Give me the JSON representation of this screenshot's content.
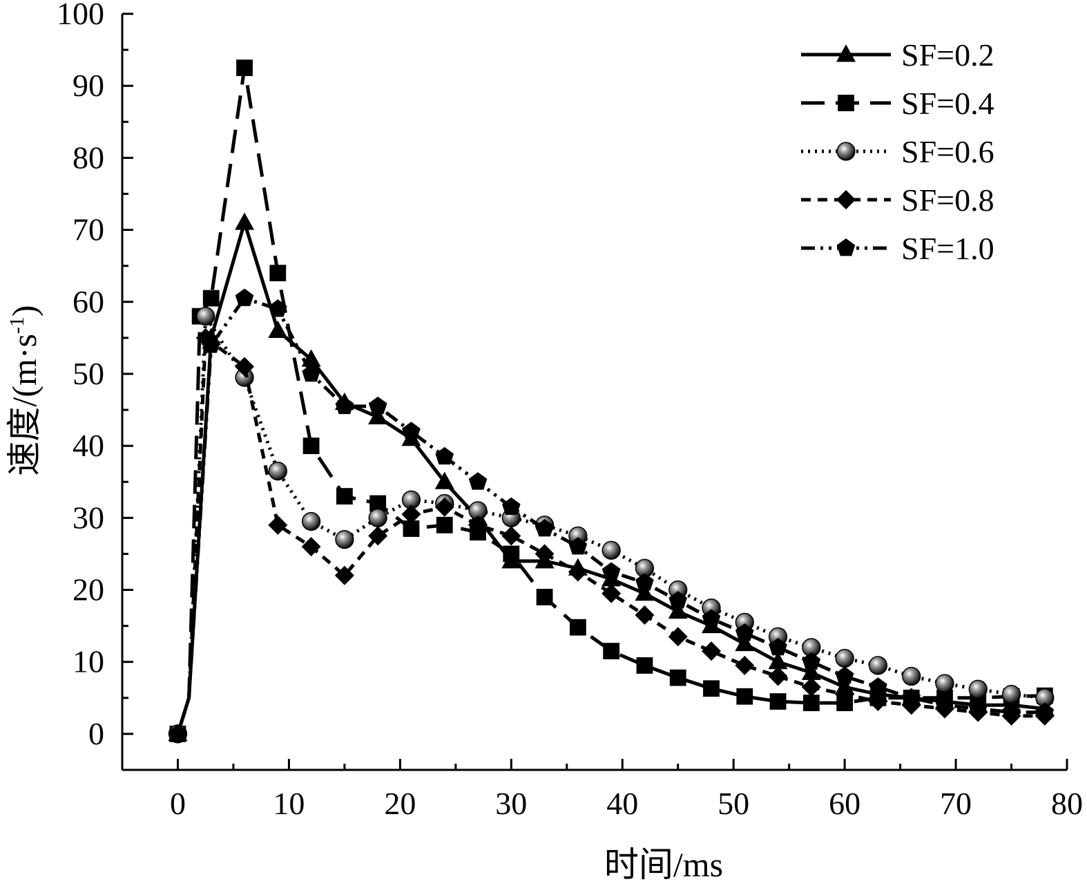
{
  "chart_data": {
    "type": "line",
    "xlabel": "时间/ms",
    "ylabel": "速度/(m·s⁻¹)",
    "ylabel_parts": {
      "base": "速度/(m·s",
      "sup": "-1",
      "close": ")"
    },
    "xlim": [
      -5,
      80
    ],
    "ylim": [
      -5,
      100
    ],
    "xticks": [
      0,
      10,
      20,
      30,
      40,
      50,
      60,
      70,
      80
    ],
    "yticks": [
      0,
      10,
      20,
      30,
      40,
      50,
      60,
      70,
      80,
      90,
      100
    ],
    "grid": false,
    "legend_position": "top-right",
    "series": [
      {
        "name": "SF=0.2",
        "marker": "triangle",
        "line_style": "solid",
        "x": [
          0,
          1,
          3,
          6,
          9,
          12,
          15,
          18,
          21,
          24,
          27,
          30,
          33,
          36,
          39,
          42,
          45,
          48,
          51,
          54,
          57,
          60,
          63,
          66,
          69,
          72,
          75,
          78
        ],
        "y": [
          0,
          5,
          55,
          71,
          56,
          52,
          46,
          44,
          41,
          35,
          30,
          24,
          24,
          23,
          21.5,
          19.5,
          17,
          15,
          12.5,
          10,
          8.5,
          6.5,
          5.5,
          5,
          4.5,
          4,
          4,
          3.5
        ]
      },
      {
        "name": "SF=0.4",
        "marker": "square",
        "line_style": "long-dash",
        "x": [
          0,
          1,
          2,
          3,
          6,
          9,
          12,
          15,
          18,
          21,
          24,
          27,
          30,
          33,
          36,
          39,
          42,
          45,
          48,
          51,
          54,
          57,
          60,
          63,
          66,
          69,
          72,
          75,
          78
        ],
        "y": [
          0,
          5,
          58,
          60.5,
          92.5,
          64,
          40,
          33,
          32,
          28.5,
          29,
          28,
          25,
          19,
          14.8,
          11.5,
          9.5,
          7.8,
          6.3,
          5.2,
          4.5,
          4.3,
          4.3,
          5,
          5,
          5,
          5,
          5.2,
          5.3
        ]
      },
      {
        "name": "SF=0.6",
        "marker": "sphere",
        "line_style": "dotted",
        "x": [
          0,
          1,
          2.5,
          6,
          9,
          12,
          15,
          18,
          21,
          24,
          27,
          30,
          33,
          36,
          39,
          42,
          45,
          48,
          51,
          54,
          57,
          60,
          63,
          66,
          69,
          72,
          75,
          78
        ],
        "y": [
          0,
          5,
          58,
          49.5,
          36.5,
          29.5,
          27,
          30,
          32.5,
          32,
          31,
          30,
          29,
          27.5,
          25.5,
          23,
          20,
          17.5,
          15.5,
          13.5,
          12,
          10.5,
          9.5,
          8,
          7,
          6.2,
          5.5,
          5
        ]
      },
      {
        "name": "SF=0.8",
        "marker": "diamond",
        "line_style": "dashed",
        "x": [
          0,
          1,
          2.5,
          6,
          9,
          12,
          15,
          18,
          21,
          24,
          27,
          30,
          33,
          36,
          39,
          42,
          45,
          48,
          51,
          54,
          57,
          60,
          63,
          66,
          69,
          72,
          75,
          78
        ],
        "y": [
          0,
          5,
          55,
          51,
          29,
          26,
          22,
          27.5,
          30.5,
          31.5,
          29,
          27.5,
          25,
          22.5,
          19.5,
          16.5,
          13.5,
          11.5,
          9.5,
          8,
          6.5,
          5.5,
          4.5,
          4,
          3.5,
          3,
          2.5,
          2.5
        ]
      },
      {
        "name": "SF=1.0",
        "marker": "pentagon",
        "line_style": "dash-dot-dot",
        "x": [
          0,
          1,
          3,
          6,
          9,
          12,
          15,
          18,
          21,
          24,
          27,
          30,
          33,
          36,
          39,
          42,
          45,
          48,
          51,
          54,
          57,
          60,
          63,
          66,
          69,
          72,
          75,
          78
        ],
        "y": [
          0,
          5,
          54,
          60.5,
          59,
          50,
          45.5,
          45.5,
          42,
          38.5,
          35,
          31.5,
          28.5,
          26,
          22.5,
          21,
          18.5,
          16,
          14,
          12,
          10,
          8,
          6.5,
          5,
          4,
          3.5,
          3,
          3
        ]
      }
    ]
  }
}
